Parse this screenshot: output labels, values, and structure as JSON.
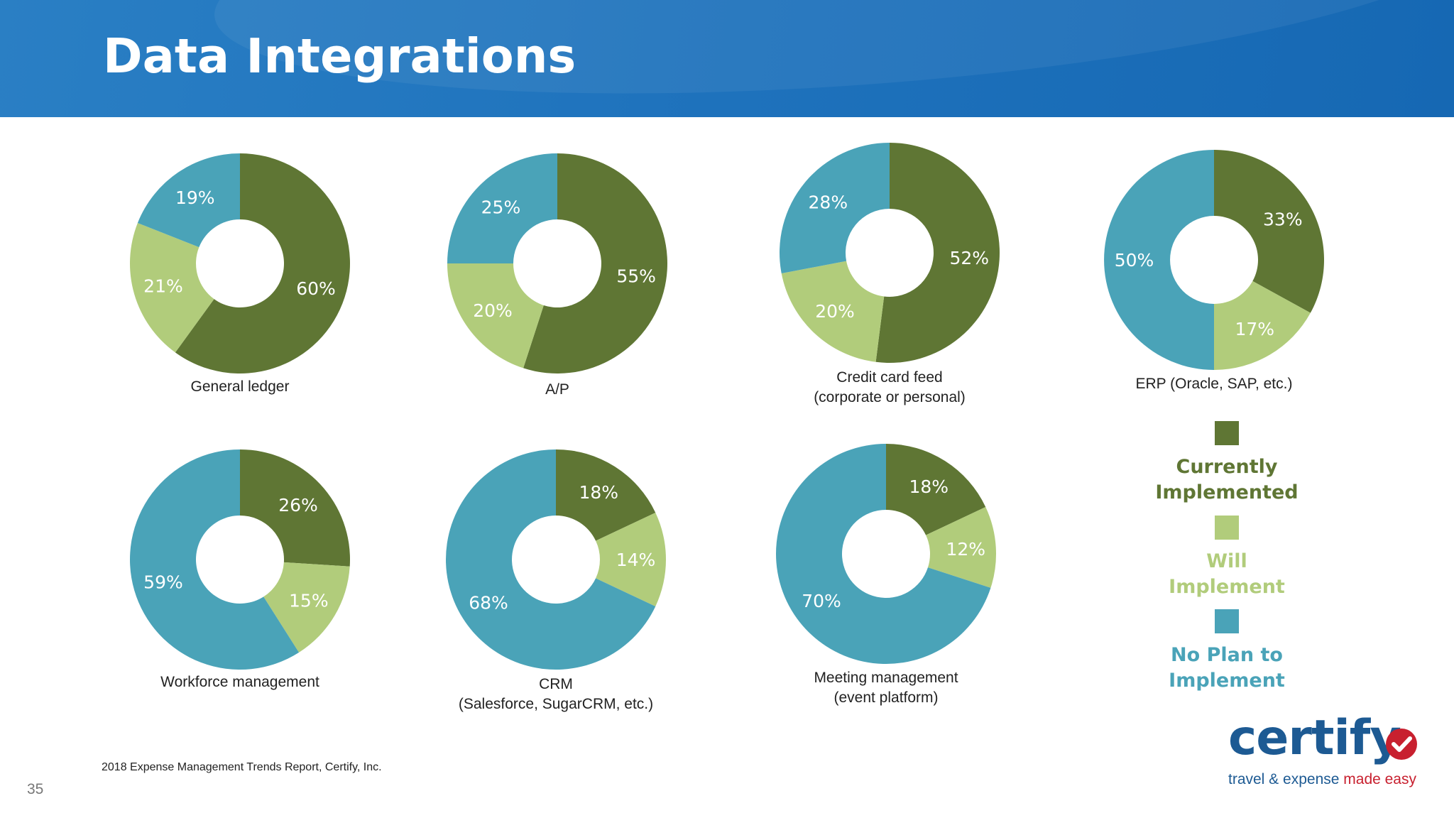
{
  "page": {
    "title": "Data Integrations",
    "page_number": "35"
  },
  "source": "2018 Expense Management Trends Report, Certify, Inc.",
  "colors": {
    "current": "#5f7634",
    "will": "#b1cc7b",
    "no_plan": "#4aa3b8",
    "header": "#1f73bd",
    "logo_blue": "#1d5a93",
    "logo_red": "#c8202f"
  },
  "legend": [
    {
      "label": "Currently\nImplemented",
      "color": "#5f7634"
    },
    {
      "label": "Will\nImplement",
      "color": "#b1cc7b"
    },
    {
      "label": "No Plan to\nImplement",
      "color": "#4aa3b8"
    }
  ],
  "logo": {
    "word": "certify",
    "tagline_a": "travel & expense ",
    "tagline_b": "made easy"
  },
  "chart_data": [
    {
      "type": "pie",
      "title": "General ledger",
      "categories": [
        "Currently Implemented",
        "Will Implement",
        "No Plan to Implement"
      ],
      "values": [
        60,
        21,
        19
      ],
      "labels": [
        "60%",
        "21%",
        "19%"
      ]
    },
    {
      "type": "pie",
      "title": "A/P",
      "categories": [
        "Currently Implemented",
        "Will Implement",
        "No Plan to Implement"
      ],
      "values": [
        55,
        20,
        25
      ],
      "labels": [
        "55%",
        "20%",
        "25%"
      ]
    },
    {
      "type": "pie",
      "title": "Credit card feed\n(corporate or personal)",
      "categories": [
        "Currently Implemented",
        "Will Implement",
        "No Plan to Implement"
      ],
      "values": [
        52,
        20,
        28
      ],
      "labels": [
        "52%",
        "20%",
        "28%"
      ]
    },
    {
      "type": "pie",
      "title": "ERP (Oracle, SAP, etc.)",
      "categories": [
        "Currently Implemented",
        "Will Implement",
        "No Plan to Implement"
      ],
      "values": [
        33,
        17,
        50
      ],
      "labels": [
        "33%",
        "17%",
        "50%"
      ]
    },
    {
      "type": "pie",
      "title": "Workforce management",
      "categories": [
        "Currently Implemented",
        "Will Implement",
        "No Plan to Implement"
      ],
      "values": [
        26,
        15,
        59
      ],
      "labels": [
        "26%",
        "15%",
        "59%"
      ]
    },
    {
      "type": "pie",
      "title": "CRM\n(Salesforce, SugarCRM, etc.)",
      "categories": [
        "Currently Implemented",
        "Will Implement",
        "No Plan to Implement"
      ],
      "values": [
        18,
        14,
        68
      ],
      "labels": [
        "18%",
        "14%",
        "68%"
      ]
    },
    {
      "type": "pie",
      "title": "Meeting management\n(event platform)",
      "categories": [
        "Currently Implemented",
        "Will Implement",
        "No Plan to Implement"
      ],
      "values": [
        18,
        12,
        70
      ],
      "labels": [
        "18%",
        "12%",
        "70%"
      ]
    }
  ]
}
